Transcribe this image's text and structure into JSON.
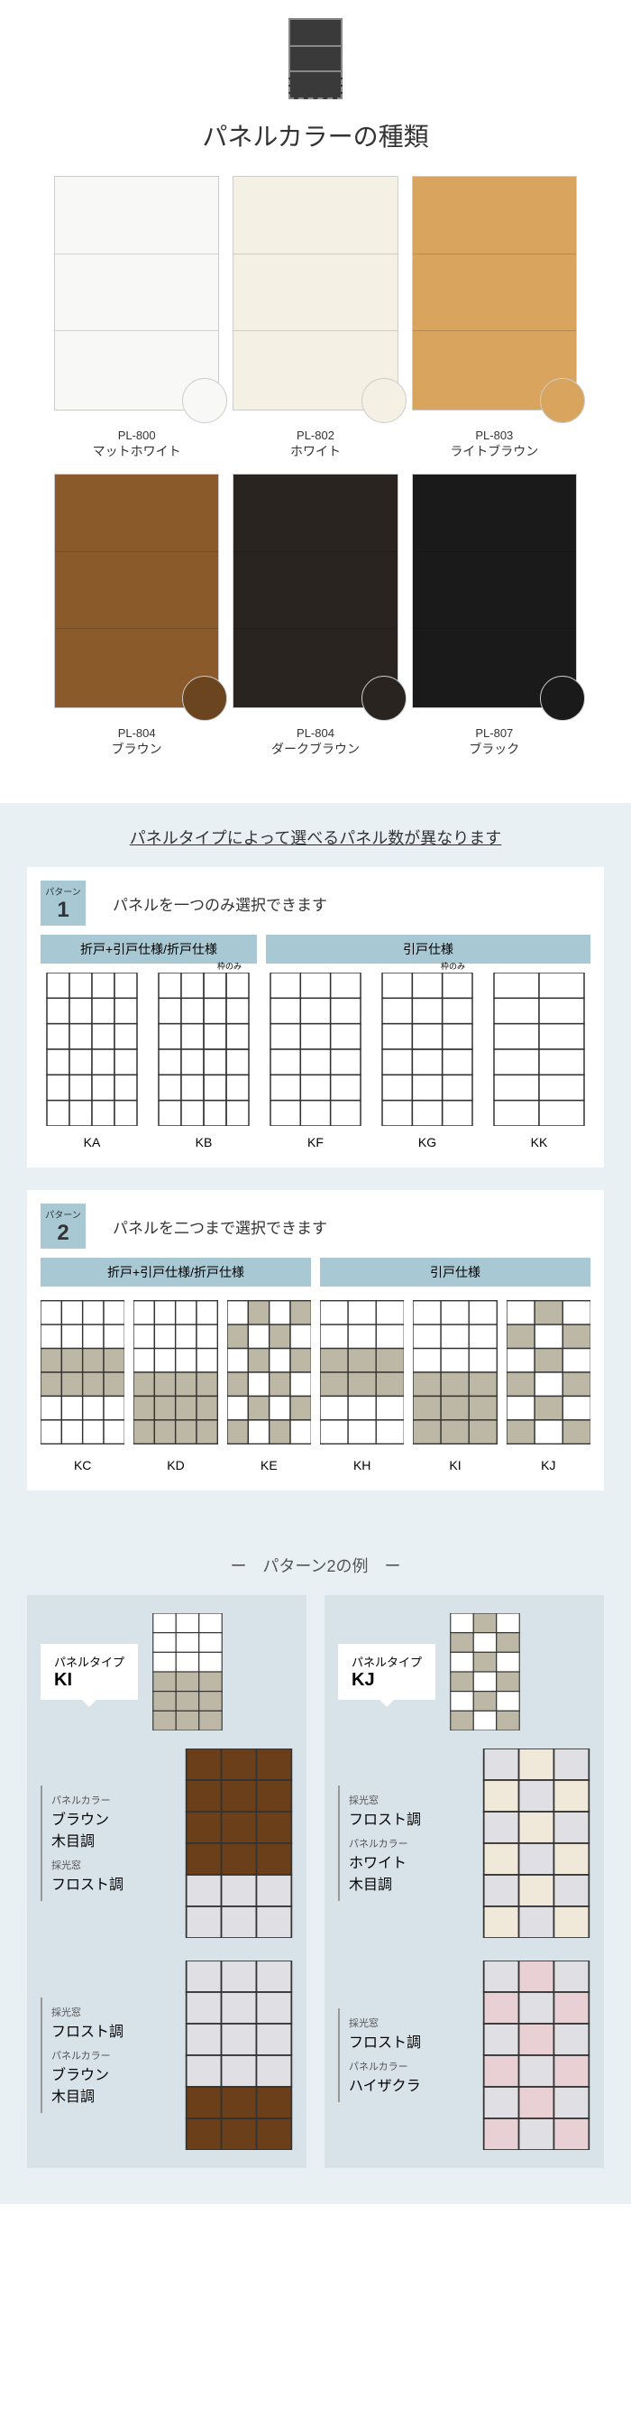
{
  "colors": {
    "pl800": "#f8f8f6",
    "pl802": "#f5f0e4",
    "pl803": "#d9a55e",
    "pl804": "#8b5a2b",
    "pl804d": "#2a2420",
    "pl807": "#1a1a1a",
    "section2_bg": "#e8f0f4",
    "badge_bg": "#a8c8d4",
    "beige": "#bdb8a6",
    "brown_wood": "#6b3f1a",
    "frost": "#e0dfe4",
    "white_wood": "#f0e8d8",
    "pink": "#e8d0d4"
  },
  "header": {
    "title": "パネルカラーの種類"
  },
  "panels": [
    {
      "code": "PL-800",
      "name": "マットホワイト",
      "bg": "#f8f8f6",
      "swatch": "#f8f8f6"
    },
    {
      "code": "PL-802",
      "name": "ホワイト",
      "bg": "#f5f0e4",
      "swatch": "#f5f0e4"
    },
    {
      "code": "PL-803",
      "name": "ライトブラウン",
      "bg": "#d9a55e",
      "swatch": "#d9a55e"
    },
    {
      "code": "PL-804",
      "name": "ブラウン",
      "bg": "#8b5a2b",
      "swatch": "#6b4520"
    },
    {
      "code": "PL-804",
      "name": "ダークブラウン",
      "bg": "#2a2420",
      "swatch": "#2a2420"
    },
    {
      "code": "PL-807",
      "name": "ブラック",
      "bg": "#1a1a1a",
      "swatch": "#1a1a1a"
    }
  ],
  "section2": {
    "title": "パネルタイプによって選べるパネル数が異なります",
    "patterns": [
      {
        "badge_label": "パターン",
        "num": "1",
        "desc": "パネルを一つのみ選択できます",
        "subheads": [
          "折戸+引戸仕様/折戸仕様",
          "引戸仕様"
        ],
        "doors": [
          {
            "code": "KA",
            "type": "p1_4col"
          },
          {
            "code": "KB",
            "type": "p1_4col_frame",
            "frame_note": "枠のみ"
          },
          {
            "code": "KF",
            "type": "p1_3col"
          },
          {
            "code": "KG",
            "type": "p1_3col_frame",
            "frame_note": "枠のみ"
          },
          {
            "code": "KK",
            "type": "p1_2col"
          }
        ]
      },
      {
        "badge_label": "パターン",
        "num": "2",
        "desc": "パネルを二つまで選択できます",
        "subheads": [
          "折戸+引戸仕様/折戸仕様",
          "引戸仕様"
        ],
        "doors": [
          {
            "code": "KC",
            "type": "p2_kc"
          },
          {
            "code": "KD",
            "type": "p2_kd"
          },
          {
            "code": "KE",
            "type": "p2_ke"
          },
          {
            "code": "KH",
            "type": "p2_kh"
          },
          {
            "code": "KI",
            "type": "p2_ki"
          },
          {
            "code": "KJ",
            "type": "p2_kj"
          }
        ]
      }
    ]
  },
  "section3": {
    "title": "ー　パターン2の例　ー",
    "examples": [
      {
        "tag_label": "パネルタイプ",
        "code": "KI",
        "thumb": "p2_ki",
        "cases": [
          {
            "labels": [
              {
                "small": "パネルカラー",
                "big": "ブラウン\n木目調"
              },
              {
                "small": "採光窓",
                "big": "フロスト調"
              }
            ],
            "door": "ex_ki_1"
          },
          {
            "labels": [
              {
                "small": "採光窓",
                "big": "フロスト調"
              },
              {
                "small": "パネルカラー",
                "big": "ブラウン\n木目調"
              }
            ],
            "door": "ex_ki_2"
          }
        ]
      },
      {
        "tag_label": "パネルタイプ",
        "code": "KJ",
        "thumb": "p2_kj",
        "cases": [
          {
            "labels": [
              {
                "small": "採光窓",
                "big": "フロスト調"
              },
              {
                "small": "パネルカラー",
                "big": "ホワイト\n木目調"
              }
            ],
            "door": "ex_kj_1"
          },
          {
            "labels": [
              {
                "small": "採光窓",
                "big": "フロスト調"
              },
              {
                "small": "パネルカラー",
                "big": "ハイザクラ"
              }
            ],
            "door": "ex_kj_2"
          }
        ]
      }
    ]
  }
}
